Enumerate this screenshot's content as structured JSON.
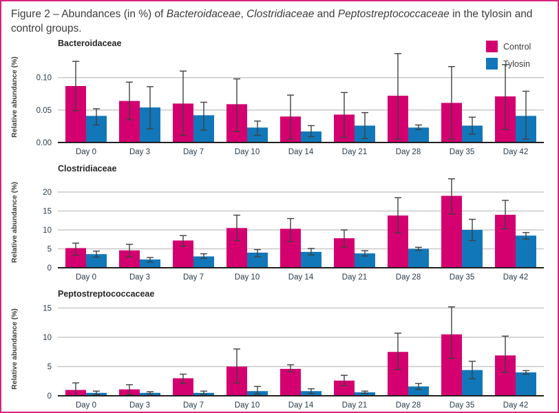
{
  "figure": {
    "caption_parts": [
      {
        "text": "Figure 2 – Abundances (in %) of ",
        "italic": false
      },
      {
        "text": "Bacteroidaceae",
        "italic": true
      },
      {
        "text": ", ",
        "italic": false
      },
      {
        "text": "Clostridiaceae",
        "italic": true
      },
      {
        "text": " and ",
        "italic": false
      },
      {
        "text": "Peptostreptococcaceae",
        "italic": true
      },
      {
        "text": " in the tylosin and control groups.",
        "italic": false
      }
    ],
    "border_color": "#D6247A",
    "background_color": "#FFFFFF"
  },
  "legend": {
    "position": "top-right",
    "items": [
      {
        "label": "Control",
        "color": "#D40070"
      },
      {
        "label": "Tylosin",
        "color": "#1177B8"
      }
    ]
  },
  "style": {
    "control_color": "#D40070",
    "tylosin_color": "#1177B8",
    "gridline_color": "#C8C8C8",
    "axis_color": "#231F20",
    "errorbar_color": "#404040",
    "tick_label_color": "#263B4C",
    "title_color": "#262626",
    "ylabel_color": "#3C3C3B",
    "caption_color": "#3C3C3B"
  },
  "chart_data": [
    {
      "type": "bar",
      "title": "Bacteroidaceae",
      "ylabel": "Relative abundance (%)",
      "xlabel": "",
      "grid": true,
      "show_legend": true,
      "categories": [
        "Day 0",
        "Day 3",
        "Day 7",
        "Day 10",
        "Day 14",
        "Day 21",
        "Day 28",
        "Day 35",
        "Day 42"
      ],
      "ylim": [
        0,
        0.14
      ],
      "yticks": [
        0,
        0.05,
        0.1
      ],
      "ytick_labels": [
        "0.00",
        "0.05",
        "0.10"
      ],
      "series": [
        {
          "name": "Control",
          "color": "#D40070",
          "values": [
            0.087,
            0.064,
            0.06,
            0.059,
            0.04,
            0.043,
            0.072,
            0.061,
            0.071
          ],
          "err_low": [
            0.049,
            0.035,
            0.011,
            0.017,
            0.005,
            0.008,
            0.005,
            0.005,
            0.02
          ],
          "err_high": [
            0.125,
            0.093,
            0.11,
            0.098,
            0.073,
            0.077,
            0.137,
            0.117,
            0.12
          ]
        },
        {
          "name": "Tylosin",
          "color": "#1177B8",
          "values": [
            0.041,
            0.054,
            0.042,
            0.023,
            0.017,
            0.026,
            0.023,
            0.026,
            0.041
          ],
          "err_low": [
            0.027,
            0.021,
            0.019,
            0.011,
            0.009,
            0.006,
            0.02,
            0.013,
            0.005
          ],
          "err_high": [
            0.052,
            0.086,
            0.062,
            0.033,
            0.026,
            0.046,
            0.027,
            0.039,
            0.079
          ]
        }
      ]
    },
    {
      "type": "bar",
      "title": "Clostridiaceae",
      "ylabel": "Relative abundance (%)",
      "xlabel": "",
      "grid": true,
      "show_legend": false,
      "categories": [
        "Day 0",
        "Day 3",
        "Day 7",
        "Day 10",
        "Day 14",
        "Day 21",
        "Day 28",
        "Day 35",
        "Day 42"
      ],
      "ylim": [
        0,
        24
      ],
      "yticks": [
        0,
        5,
        10,
        15,
        20
      ],
      "ytick_labels": [
        "0",
        "5",
        "10",
        "15",
        "20"
      ],
      "series": [
        {
          "name": "Control",
          "color": "#D40070",
          "values": [
            5.2,
            4.6,
            7.2,
            10.5,
            10.3,
            7.8,
            13.8,
            19.0,
            14.0
          ],
          "err_low": [
            3.3,
            2.9,
            5.7,
            7.2,
            6.9,
            5.5,
            9.2,
            14.2,
            10.3
          ],
          "err_high": [
            6.5,
            6.2,
            8.5,
            13.9,
            13.0,
            10.0,
            18.5,
            23.5,
            17.8
          ]
        },
        {
          "name": "Tylosin",
          "color": "#1177B8",
          "values": [
            3.6,
            2.2,
            3.0,
            4.0,
            4.2,
            3.8,
            5.0,
            10.0,
            8.5
          ],
          "err_low": [
            2.8,
            1.5,
            2.5,
            2.9,
            3.4,
            3.1,
            4.6,
            7.2,
            7.6
          ],
          "err_high": [
            4.4,
            2.7,
            3.7,
            4.8,
            5.1,
            4.5,
            5.4,
            12.8,
            9.3
          ]
        }
      ]
    },
    {
      "type": "bar",
      "title": "Peptostreptococcaceae",
      "ylabel": "Relative abundance (%)",
      "xlabel": "",
      "grid": true,
      "show_legend": false,
      "categories": [
        "Day 0",
        "Day 3",
        "Day 7",
        "Day 10",
        "Day 14",
        "Day 21",
        "Day 28",
        "Day 35",
        "Day 42"
      ],
      "ylim": [
        0,
        16
      ],
      "yticks": [
        0,
        5,
        10,
        15
      ],
      "ytick_labels": [
        "0",
        "5",
        "10",
        "15"
      ],
      "series": [
        {
          "name": "Control",
          "color": "#D40070",
          "values": [
            1.0,
            1.1,
            3.0,
            5.0,
            4.6,
            2.6,
            7.5,
            10.5,
            6.9
          ],
          "err_low": [
            0.0,
            0.2,
            2.1,
            2.2,
            4.1,
            1.7,
            4.5,
            6.4,
            4.0
          ],
          "err_high": [
            2.2,
            1.9,
            3.7,
            8.0,
            5.3,
            3.5,
            10.7,
            15.2,
            10.2
          ]
        },
        {
          "name": "Tylosin",
          "color": "#1177B8",
          "values": [
            0.5,
            0.5,
            0.5,
            0.8,
            0.8,
            0.6,
            1.6,
            4.4,
            4.0
          ],
          "err_low": [
            0.2,
            0.3,
            0.3,
            0.3,
            0.4,
            0.4,
            1.1,
            2.9,
            3.7
          ],
          "err_high": [
            0.8,
            0.7,
            0.8,
            1.6,
            1.2,
            0.8,
            2.1,
            5.9,
            4.3
          ]
        }
      ]
    }
  ]
}
